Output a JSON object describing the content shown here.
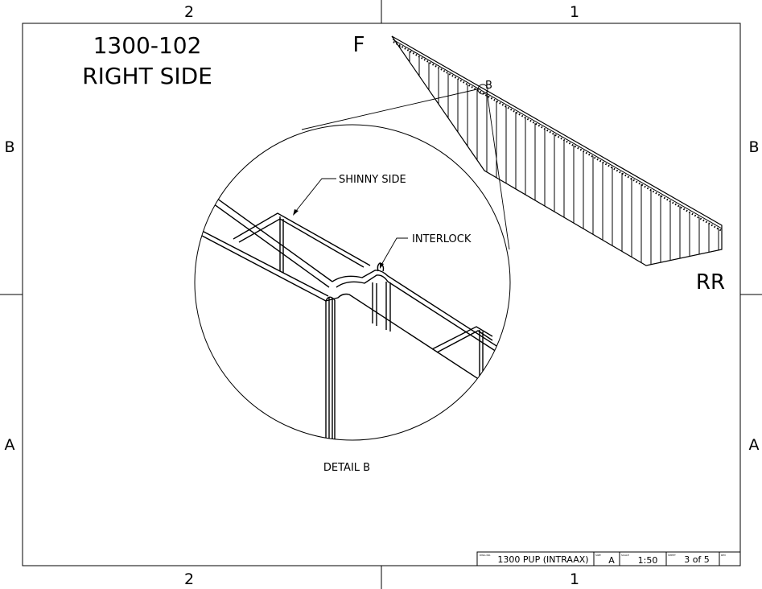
{
  "drawing": {
    "part_number": "1300-102",
    "view_name": "RIGHT SIDE",
    "front_label": "F",
    "rear_label": "RR",
    "detail_marker": "B",
    "detail_title": "DETAIL B",
    "callouts": {
      "shinny_side": "SHINNY SIDE",
      "interlock": "INTERLOCK"
    }
  },
  "border": {
    "top_columns": [
      "2",
      "1"
    ],
    "bottom_columns": [
      "2",
      "1"
    ],
    "left_rows": [
      "B",
      "A"
    ],
    "right_rows": [
      "B",
      "A"
    ]
  },
  "title_block": {
    "dwg_no_label": "DWG NO.",
    "dwg_no": "1300 PUP (INTRAAX)",
    "size_label": "SIZE",
    "size": "A",
    "scale_label": "SCALE",
    "scale": "1:50",
    "sheet_label": "SHEET",
    "sheet": "3 of 5",
    "rev_label": "REV"
  }
}
